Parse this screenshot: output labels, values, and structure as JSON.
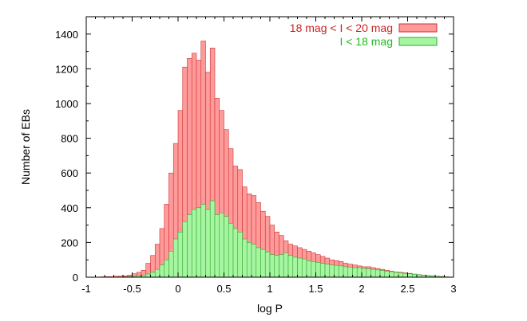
{
  "chart_data": {
    "type": "bar",
    "xlabel": "log P",
    "ylabel": "Number of EBs",
    "xlim": [
      -1,
      3
    ],
    "ylim": [
      0,
      1500
    ],
    "x_ticks": [
      "-1",
      "-0.5",
      "0",
      "0.5",
      "1",
      "1.5",
      "2",
      "2.5",
      "3"
    ],
    "y_ticks": [
      "0",
      "200",
      "400",
      "600",
      "800",
      "1000",
      "1200",
      "1400"
    ],
    "legend_position": "top-right",
    "bin_width": 0.05,
    "bin_centers": [
      -0.975,
      -0.925,
      -0.875,
      -0.825,
      -0.775,
      -0.725,
      -0.675,
      -0.625,
      -0.575,
      -0.525,
      -0.475,
      -0.425,
      -0.375,
      -0.325,
      -0.275,
      -0.225,
      -0.175,
      -0.125,
      -0.075,
      -0.025,
      0.025,
      0.075,
      0.125,
      0.175,
      0.225,
      0.275,
      0.325,
      0.375,
      0.425,
      0.475,
      0.525,
      0.575,
      0.625,
      0.675,
      0.725,
      0.775,
      0.825,
      0.875,
      0.925,
      0.975,
      1.025,
      1.075,
      1.125,
      1.175,
      1.225,
      1.275,
      1.325,
      1.375,
      1.425,
      1.475,
      1.525,
      1.575,
      1.625,
      1.675,
      1.725,
      1.775,
      1.825,
      1.875,
      1.925,
      1.975,
      2.025,
      2.075,
      2.125,
      2.175,
      2.225,
      2.275,
      2.325,
      2.375,
      2.425,
      2.475,
      2.525,
      2.575,
      2.625,
      2.675,
      2.725,
      2.775,
      2.825,
      2.875,
      2.925,
      2.975
    ],
    "series": [
      {
        "name": "18 mag < I < 20 mag",
        "color": "#ff9a9a",
        "edge": "#cc3333",
        "label_color": "#cc2222",
        "values": [
          0,
          0,
          0,
          2,
          3,
          3,
          5,
          6,
          8,
          12,
          20,
          28,
          40,
          80,
          125,
          190,
          280,
          420,
          600,
          770,
          960,
          1210,
          1260,
          1290,
          1250,
          1360,
          1180,
          1320,
          1030,
          960,
          850,
          740,
          640,
          620,
          520,
          480,
          470,
          430,
          380,
          350,
          300,
          260,
          240,
          210,
          190,
          180,
          170,
          160,
          150,
          140,
          130,
          120,
          110,
          100,
          95,
          90,
          80,
          75,
          70,
          65,
          60,
          60,
          55,
          50,
          45,
          40,
          35,
          30,
          28,
          25,
          22,
          18,
          15,
          12,
          10,
          8,
          6,
          4,
          2,
          0
        ]
      },
      {
        "name": "I < 18 mag",
        "color": "#a6f5a0",
        "edge": "#33aa33",
        "label_color": "#22bb22",
        "values": [
          0,
          0,
          0,
          0,
          0,
          0,
          0,
          1,
          2,
          3,
          5,
          8,
          12,
          18,
          28,
          45,
          70,
          100,
          150,
          220,
          260,
          320,
          360,
          390,
          400,
          420,
          390,
          440,
          360,
          370,
          350,
          310,
          280,
          260,
          220,
          200,
          190,
          170,
          160,
          145,
          130,
          125,
          130,
          140,
          125,
          115,
          110,
          105,
          95,
          90,
          85,
          80,
          75,
          70,
          68,
          65,
          60,
          58,
          55,
          55,
          50,
          48,
          45,
          42,
          38,
          35,
          32,
          28,
          25,
          22,
          20,
          17,
          14,
          11,
          9,
          7,
          5,
          3,
          1,
          0
        ]
      }
    ]
  }
}
